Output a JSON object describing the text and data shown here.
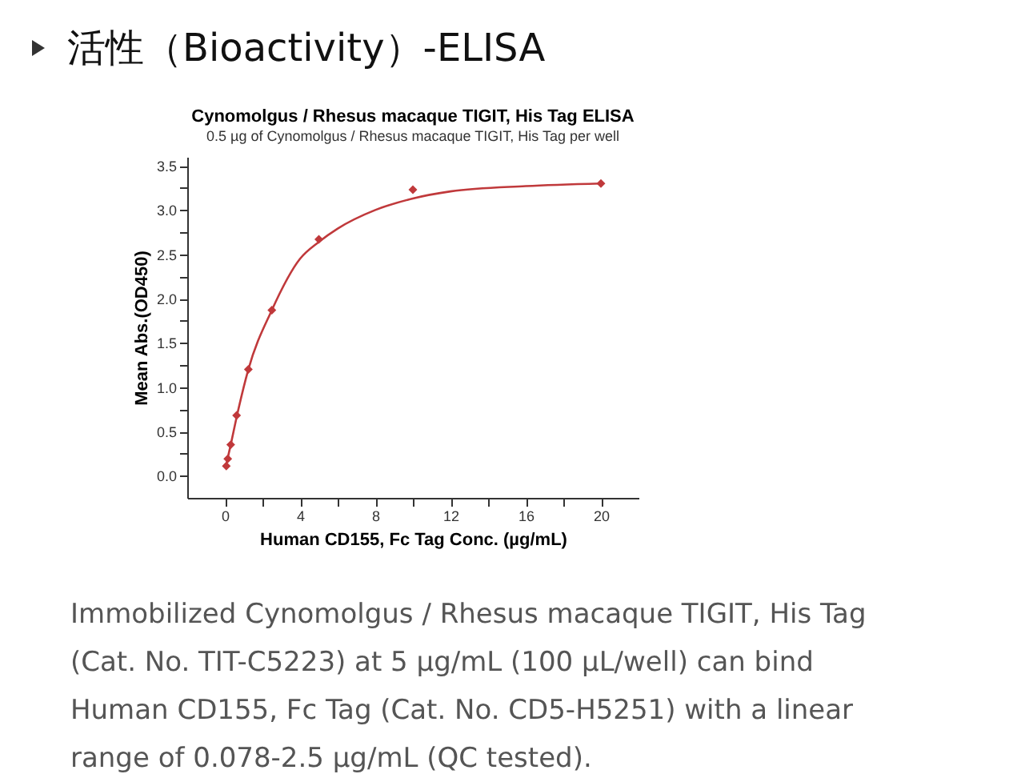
{
  "chart_data": {
    "type": "scatter",
    "title": "Cynomolgus / Rhesus macaque TIGIT, His Tag ELISA",
    "subtitle": "0.5 µg of Cynomolgus / Rhesus macaque TIGIT, His Tag per well",
    "xlabel": "Human CD155, Fc Tag Conc. (µg/mL)",
    "ylabel": "Mean Abs.(OD450)",
    "annotations": [
      "活性（Bioactivity）-ELISA",
      "Immobilized Cynomolgus / Rhesus macaque TIGIT, His Tag (Cat. No. TIT-C5223) at 5 μg/mL (100 μL/well) can bind Human CD155, Fc Tag (Cat. No. CD5-H5251) with a linear range of 0.078-2.5 μg/mL (QC tested)."
    ],
    "series": [
      {
        "color": "#c0393b",
        "x": [
          0.078,
          0.156,
          0.313,
          0.625,
          1.25,
          2.5,
          5,
          10,
          20
        ],
        "values": [
          0.11,
          0.19,
          0.35,
          0.68,
          1.2,
          1.87,
          2.67,
          3.23,
          3.3
        ]
      },
      {
        "type": "line",
        "marker": "none",
        "color": "#c0393b",
        "x": [
          0.078,
          0.313,
          0.625,
          1.25,
          2.5,
          4,
          5,
          6,
          8,
          10,
          12,
          16,
          20
        ],
        "values": [
          0.13,
          0.35,
          0.66,
          1.2,
          1.87,
          2.45,
          2.64,
          2.79,
          3.0,
          3.13,
          3.21,
          3.27,
          3.3
        ]
      }
    ],
    "marker": "diamond",
    "grid": false,
    "xlim": [
      -2,
      22
    ],
    "xticks": [
      0,
      {
        "value": 2,
        "label": null
      },
      4,
      {
        "value": 6,
        "label": null
      },
      8,
      {
        "value": 10,
        "label": null
      },
      12,
      {
        "value": 14,
        "label": null
      },
      16,
      {
        "value": 18,
        "label": null
      },
      20
    ],
    "ylim": [
      -0.25,
      3.6
    ],
    "yticks": [
      {
        "value": 0,
        "label": "0.0"
      },
      {
        "value": 0.25,
        "label": null
      },
      {
        "value": 0.5,
        "label": "0.5"
      },
      {
        "value": 0.75,
        "label": null
      },
      {
        "value": 1,
        "label": "1.0"
      },
      {
        "value": 1.25,
        "label": null
      },
      {
        "value": 1.5,
        "label": "1.5"
      },
      {
        "value": 1.75,
        "label": null
      },
      {
        "value": 2,
        "label": "2.0"
      },
      {
        "value": 2.25,
        "label": null
      },
      {
        "value": 2.5,
        "label": "2.5"
      },
      {
        "value": 2.75,
        "label": null
      },
      {
        "value": 3,
        "label": "3.0"
      },
      {
        "value": 3.25,
        "label": null
      },
      {
        "value": 3.5,
        "label": "3.5"
      }
    ]
  }
}
